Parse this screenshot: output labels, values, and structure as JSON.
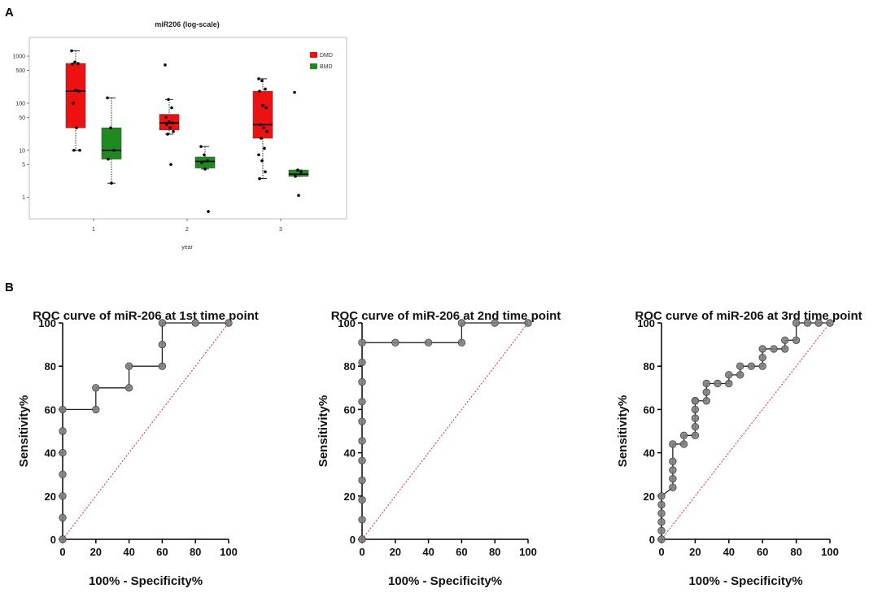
{
  "panel_labels": {
    "a": "A",
    "b": "B"
  },
  "colors": {
    "dmd": "#ee1111",
    "bmd": "#1f8a1f",
    "roc_line": "#222222",
    "roc_marker": "#808080",
    "diagonal": "#d62728"
  },
  "chart_data": [
    {
      "type": "box",
      "title": "miR206 (log-scale)",
      "xlabel": "year",
      "ylabel": "",
      "y_scale": "log",
      "ylim": [
        0.35,
        2500
      ],
      "yticks": [
        1,
        5,
        10,
        50,
        100,
        500,
        1000
      ],
      "ytick_labels": [
        "1",
        "5",
        "10",
        "50",
        "100",
        "500",
        "1000"
      ],
      "categories": [
        "1",
        "2",
        "3"
      ],
      "legend": [
        {
          "name": "DMD",
          "color": "#ee1111"
        },
        {
          "name": "BMD",
          "color": "#1f8a1f"
        }
      ],
      "series": [
        {
          "name": "DMD",
          "color": "#ee1111",
          "boxes": [
            {
              "group": "1",
              "min": 10,
              "q1": 30,
              "median": 180,
              "q3": 700,
              "max": 1300,
              "points": [
                1300,
                750,
                700,
                680,
                190,
                180,
                100,
                30,
                10,
                10
              ]
            },
            {
              "group": "2",
              "min": 22,
              "q1": 27,
              "median": 38,
              "q3": 58,
              "max": 120,
              "points": [
                650,
                120,
                80,
                50,
                40,
                38,
                35,
                30,
                25,
                22,
                5
              ]
            },
            {
              "group": "3",
              "min": 2.5,
              "q1": 18,
              "median": 35,
              "q3": 180,
              "max": 330,
              "points": [
                330,
                300,
                200,
                180,
                90,
                80,
                35,
                30,
                25,
                18,
                11,
                8,
                6,
                3.5,
                2.5
              ]
            }
          ]
        },
        {
          "name": "BMD",
          "color": "#1f8a1f",
          "boxes": [
            {
              "group": "1",
              "min": 2,
              "q1": 6.5,
              "median": 10,
              "q3": 30,
              "max": 130,
              "points": [
                130,
                30,
                10,
                6.5,
                2
              ]
            },
            {
              "group": "2",
              "min": 4,
              "q1": 4.2,
              "median": 5.8,
              "q3": 7.2,
              "max": 12,
              "points": [
                12,
                8,
                6,
                5.5,
                4,
                0.5
              ]
            },
            {
              "group": "3",
              "min": 2.8,
              "q1": 2.8,
              "median": 3.1,
              "q3": 3.8,
              "max": 3.8,
              "points": [
                170,
                3.8,
                3.5,
                2.8,
                1.1
              ]
            }
          ]
        }
      ]
    },
    {
      "type": "line",
      "title": "ROC curve of miR-206 at 1st time point",
      "xlabel": "100% - Specificity%",
      "ylabel": "Sensitivity%",
      "xlim": [
        0,
        100
      ],
      "ylim": [
        0,
        100
      ],
      "xticks": [
        0,
        20,
        40,
        60,
        80,
        100
      ],
      "yticks": [
        0,
        20,
        40,
        60,
        80,
        100
      ],
      "series": [
        {
          "name": "ROC",
          "step": true,
          "x": [
            0,
            0,
            0,
            0,
            0,
            0,
            0,
            20,
            20,
            40,
            40,
            60,
            60,
            60,
            80,
            100
          ],
          "y": [
            0,
            10,
            20,
            30,
            40,
            50,
            60,
            60,
            70,
            70,
            80,
            80,
            90,
            100,
            100,
            100
          ]
        },
        {
          "name": "Reference",
          "x": [
            0,
            100
          ],
          "y": [
            0,
            100
          ],
          "style": "dotted"
        }
      ]
    },
    {
      "type": "line",
      "title": "ROC curve of miR-206 at 2nd time point",
      "xlabel": "100% - Specificity%",
      "ylabel": "Sensitivity%",
      "xlim": [
        0,
        100
      ],
      "ylim": [
        0,
        100
      ],
      "xticks": [
        0,
        20,
        40,
        60,
        80,
        100
      ],
      "yticks": [
        0,
        20,
        40,
        60,
        80,
        100
      ],
      "series": [
        {
          "name": "ROC",
          "step": true,
          "x": [
            0,
            0,
            0,
            0,
            0,
            0,
            0,
            0,
            0,
            0,
            0,
            20,
            40,
            60,
            60,
            80,
            100
          ],
          "y": [
            0,
            9.1,
            18.2,
            27.3,
            36.4,
            45.5,
            54.5,
            63.6,
            72.7,
            81.8,
            90.9,
            90.9,
            90.9,
            90.9,
            100,
            100,
            100
          ]
        },
        {
          "name": "Reference",
          "x": [
            0,
            100
          ],
          "y": [
            0,
            100
          ],
          "style": "dotted"
        }
      ]
    },
    {
      "type": "line",
      "title": "ROC curve of miR-206 at 3rd time point",
      "xlabel": "100% - Specificity%",
      "ylabel": "Sensitivity%",
      "xlim": [
        0,
        100
      ],
      "ylim": [
        0,
        100
      ],
      "xticks": [
        0,
        20,
        40,
        60,
        80,
        100
      ],
      "yticks": [
        0,
        20,
        40,
        60,
        80,
        100
      ],
      "series": [
        {
          "name": "ROC",
          "step": true,
          "x": [
            0,
            0,
            0,
            0,
            0,
            0,
            6.7,
            6.7,
            6.7,
            6.7,
            6.7,
            13.3,
            13.3,
            20,
            20,
            20,
            20,
            20,
            20,
            26.7,
            26.7,
            26.7,
            33.3,
            40,
            40,
            46.7,
            46.7,
            53.3,
            60,
            60,
            60,
            66.7,
            73.3,
            73.3,
            80,
            80,
            86.7,
            93.3,
            100
          ],
          "y": [
            0,
            4,
            8,
            12,
            16,
            20,
            24,
            28,
            32,
            36,
            44,
            44,
            48,
            48,
            52,
            56,
            60,
            64,
            64,
            64,
            68,
            72,
            72,
            72,
            76,
            76,
            80,
            80,
            80,
            84,
            88,
            88,
            88,
            92,
            92,
            100,
            100,
            100,
            100
          ]
        },
        {
          "name": "Reference",
          "x": [
            0,
            100
          ],
          "y": [
            0,
            100
          ],
          "style": "dotted"
        }
      ]
    }
  ]
}
